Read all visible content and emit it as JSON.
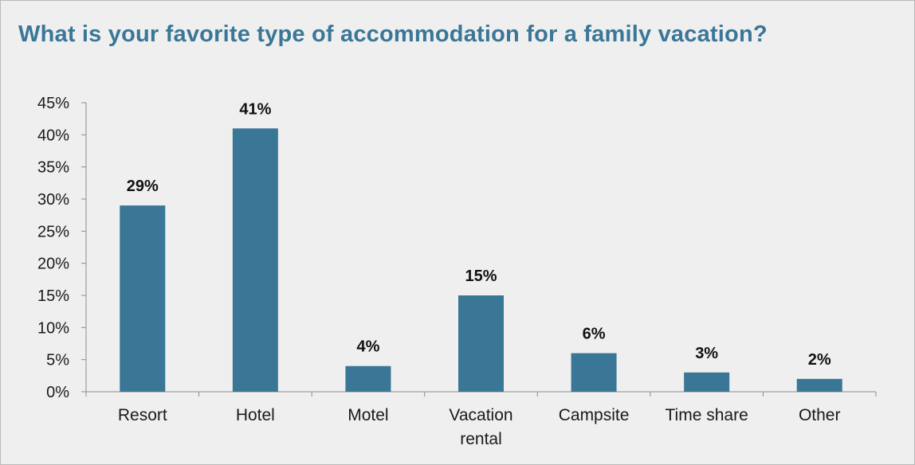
{
  "chart_data": {
    "type": "bar",
    "title": "What is your favorite type of accommodation for a family vacation?",
    "categories": [
      "Resort",
      "Hotel",
      "Motel",
      "Vacation rental",
      "Campsite",
      "Time share",
      "Other"
    ],
    "category_lines": [
      [
        "Resort"
      ],
      [
        "Hotel"
      ],
      [
        "Motel"
      ],
      [
        "Vacation",
        "rental"
      ],
      [
        "Campsite"
      ],
      [
        "Time share"
      ],
      [
        "Other"
      ]
    ],
    "values": [
      29,
      41,
      4,
      15,
      6,
      3,
      2
    ],
    "data_labels": [
      "29%",
      "41%",
      "4%",
      "15%",
      "6%",
      "3%",
      "2%"
    ],
    "y_ticks": [
      0,
      5,
      10,
      15,
      20,
      25,
      30,
      35,
      40,
      45
    ],
    "y_tick_labels": [
      "0%",
      "5%",
      "10%",
      "15%",
      "20%",
      "25%",
      "30%",
      "35%",
      "40%",
      "45%"
    ],
    "ylim": [
      0,
      45
    ],
    "xlabel": "",
    "ylabel": "",
    "grid": false,
    "legend": "none",
    "bar_color": "#3a7797",
    "title_color": "#3a7797"
  }
}
